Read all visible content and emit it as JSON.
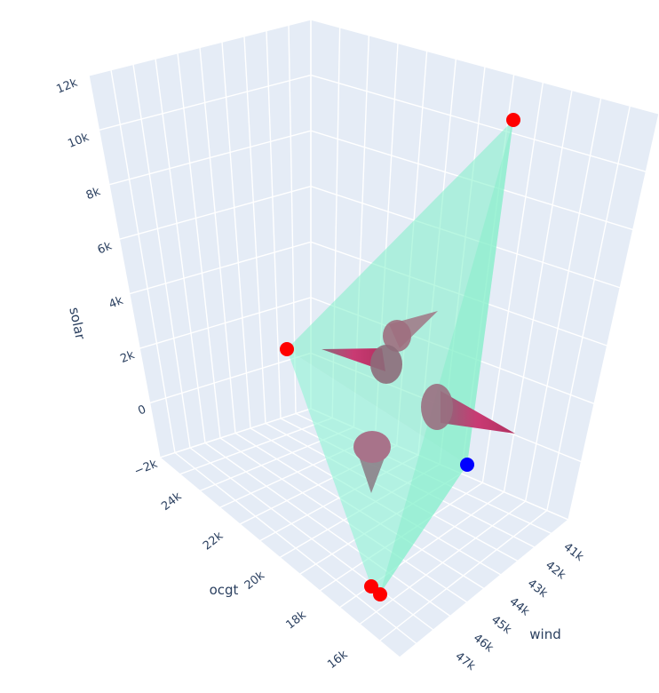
{
  "chart_data": {
    "type": "scatter3d",
    "axes": {
      "x": {
        "title": "wind",
        "ticks": [
          "41k",
          "42k",
          "43k",
          "44k",
          "45k",
          "46k",
          "47k"
        ]
      },
      "y": {
        "title": "ocgt",
        "ticks": [
          "16k",
          "18k",
          "20k",
          "22k",
          "24k"
        ]
      },
      "z": {
        "title": "solar",
        "ticks": [
          "−2k",
          "0",
          "2k",
          "4k",
          "6k",
          "8k",
          "10k",
          "12k"
        ],
        "range": [
          -2000,
          12000
        ]
      }
    },
    "grid": true,
    "colors": {
      "scene_bg": "#e5ecf6",
      "grid": "#ffffff",
      "text": "#2a3f5f",
      "hull": "#7ff0c8",
      "cone": "#c93a73",
      "vertex": "#ff0000",
      "optimum": "#0000ff"
    },
    "series": [
      {
        "type": "hull",
        "vertices": [
          {
            "wind": 41800,
            "ocgt": 16200,
            "solar": 11000
          },
          {
            "wind": 45000,
            "ocgt": 24000,
            "solar": 2600
          },
          {
            "wind": 46800,
            "ocgt": 16600,
            "solar": -1200
          },
          {
            "wind": 47000,
            "ocgt": 16400,
            "solar": -1400
          },
          {
            "wind": 44000,
            "ocgt": 16000,
            "solar": -500
          }
        ]
      },
      {
        "type": "cones",
        "count": 4
      },
      {
        "type": "points",
        "points": [
          {
            "wind": 41800,
            "ocgt": 16200,
            "solar": 11000,
            "role": "vertex"
          },
          {
            "wind": 45000,
            "ocgt": 24000,
            "solar": 2600,
            "role": "vertex"
          },
          {
            "wind": 46800,
            "ocgt": 16600,
            "solar": -1200,
            "role": "vertex"
          },
          {
            "wind": 47000,
            "ocgt": 16400,
            "solar": -1400,
            "role": "vertex"
          },
          {
            "wind": 44000,
            "ocgt": 16000,
            "solar": -500,
            "role": "optimum"
          }
        ]
      }
    ]
  }
}
